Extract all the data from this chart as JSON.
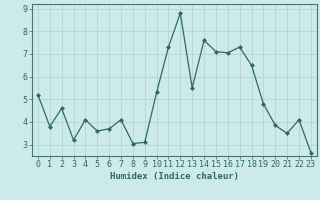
{
  "xlabel": "Humidex (Indice chaleur)",
  "ylabel": "",
  "x": [
    0,
    1,
    2,
    3,
    4,
    5,
    6,
    7,
    8,
    9,
    10,
    11,
    12,
    13,
    14,
    15,
    16,
    17,
    18,
    19,
    20,
    21,
    22,
    23
  ],
  "y": [
    5.2,
    3.8,
    4.6,
    3.2,
    4.1,
    3.6,
    3.7,
    4.1,
    3.05,
    3.1,
    5.3,
    7.3,
    8.8,
    5.5,
    7.6,
    7.1,
    7.05,
    7.3,
    6.5,
    4.8,
    3.85,
    3.5,
    4.1,
    2.65
  ],
  "line_color": "#2e6b5e",
  "marker": "D",
  "marker_size": 2.0,
  "bg_color": "#cceae8",
  "grid_color": "#aad4d0",
  "ylim": [
    2.5,
    9.2
  ],
  "yticks": [
    3,
    4,
    5,
    6,
    7,
    8,
    9
  ],
  "xlim": [
    -0.5,
    23.5
  ],
  "label_fontsize": 6.5,
  "tick_fontsize": 6.0,
  "axis_color": "#3d7a6e"
}
